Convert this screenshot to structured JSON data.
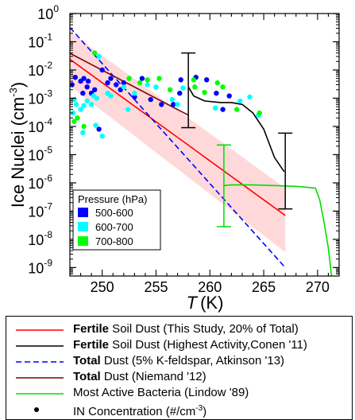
{
  "chart_data": {
    "type": "line",
    "xlabel": "T",
    "xlabel_unit": "(K)",
    "ylabel": "Ice Nuclei (cm",
    "ylabel_exp": "-3",
    "ylabel_close": ")",
    "xlim": [
      247,
      272
    ],
    "ylim_log10": [
      -9.3,
      0
    ],
    "x_ticks": [
      250,
      255,
      260,
      265,
      270
    ],
    "y_ticks": [
      {
        "exp": 0,
        "label": "10",
        "sup": "0"
      },
      {
        "exp": -1,
        "label": "10",
        "sup": "-1"
      },
      {
        "exp": -2,
        "label": "10",
        "sup": "-2"
      },
      {
        "exp": -3,
        "label": "10",
        "sup": "-3"
      },
      {
        "exp": -4,
        "label": "10",
        "sup": "-4"
      },
      {
        "exp": -5,
        "label": "10",
        "sup": "-5"
      },
      {
        "exp": -6,
        "label": "10",
        "sup": "-6"
      },
      {
        "exp": -7,
        "label": "10",
        "sup": "-7"
      },
      {
        "exp": -8,
        "label": "10",
        "sup": "-8"
      },
      {
        "exp": -9,
        "label": "10",
        "sup": "-9"
      }
    ],
    "series": [
      {
        "name": "Fertile Soil Dust (This Study, 20% of Total)",
        "color": "#ff0000",
        "style": "solid",
        "points": [
          [
            247,
            0.024
          ],
          [
            267,
            7e-08
          ]
        ],
        "band": [
          [
            247,
            0.22,
            0.0027
          ],
          [
            267,
            6.5e-07
          ],
          [
            267,
            3.5e-09
          ]
        ]
      },
      {
        "name": "Fertile Soil Dust (Highest Activity,Conen '11)",
        "color": "#000000",
        "style": "solid",
        "points": [
          [
            258,
            0.0025
          ],
          [
            258.5,
            0.0012
          ],
          [
            259.5,
            0.0008
          ],
          [
            261,
            0.0007
          ],
          [
            262,
            0.0007
          ],
          [
            263,
            0.0006
          ],
          [
            264,
            0.0003
          ],
          [
            265,
            8e-05
          ],
          [
            266,
            8e-06
          ],
          [
            266.9,
            2.5e-06
          ]
        ],
        "errorbars": [
          [
            258,
            9e-05,
            0.04
          ],
          [
            267,
            1.2e-07,
            5.8e-05
          ]
        ]
      },
      {
        "name": "Total Dust (5% K-feldspar, Atkinson '13)",
        "color": "#0000ff",
        "style": "dashed",
        "points": [
          [
            247,
            0.32
          ],
          [
            267,
            1e-09
          ]
        ]
      },
      {
        "name": "Total Dust (Niemand '12)",
        "color": "#800000",
        "style": "solid",
        "points": [
          [
            247,
            0.039
          ],
          [
            258,
            0.00025
          ]
        ]
      },
      {
        "name": "Most Active Bacteria (Lindow '89)",
        "color": "#00dd00",
        "style": "solid",
        "points": [
          [
            261.3,
            8e-07
          ],
          [
            262,
            8.5e-07
          ],
          [
            264,
            8.5e-07
          ],
          [
            266,
            8e-07
          ],
          [
            268,
            7.5e-07
          ],
          [
            269,
            7e-07
          ],
          [
            269.8,
            6.5e-07
          ],
          [
            270.2,
            2.5e-07
          ],
          [
            270.6,
            4e-08
          ],
          [
            271,
            5e-09
          ],
          [
            271.3,
            5e-10
          ]
        ],
        "errorbars": [
          [
            261.3,
            2.8e-08,
            2.2e-05
          ]
        ]
      }
    ],
    "scatter_groups": [
      {
        "name": "500-600",
        "color": "#0000ff",
        "points": [
          [
            247.2,
            0.003
          ],
          [
            247.5,
            0.0055
          ],
          [
            248,
            0.004
          ],
          [
            248.2,
            0.0015
          ],
          [
            248.3,
            0.005
          ],
          [
            248.6,
            0.0025
          ],
          [
            248.7,
            0.004
          ],
          [
            249,
            0.0015
          ],
          [
            249.3,
            0.002
          ],
          [
            249.7,
            8e-05
          ],
          [
            250,
            0.01
          ],
          [
            250.5,
            0.0035
          ],
          [
            250.8,
            0.005
          ],
          [
            251.3,
            0.003
          ],
          [
            251.7,
            0.002
          ],
          [
            252,
            0.0035
          ],
          [
            253,
            0.0011
          ],
          [
            253.7,
            0.005
          ],
          [
            254.5,
            0.0009
          ],
          [
            255.5,
            0.0006
          ],
          [
            256.6,
            0.0006
          ],
          [
            257.2,
            0.0015
          ],
          [
            257.3,
            0.0045
          ],
          [
            258.7,
            0.0055
          ],
          [
            259.7,
            0.0045
          ],
          [
            260.6,
            0.0015
          ],
          [
            261.2,
            0.0004
          ],
          [
            261.8,
            0.0012
          ]
        ]
      },
      {
        "name": "600-700",
        "color": "#00ffff",
        "points": [
          [
            247.3,
            0.0003
          ],
          [
            247.4,
            0.0009
          ],
          [
            247.6,
            0.0006
          ],
          [
            248,
            0.0004
          ],
          [
            248.3,
            0.00055
          ],
          [
            248.6,
            0.0008
          ],
          [
            249,
            0.0006
          ],
          [
            249.2,
            0.0012
          ],
          [
            249.5,
            0.001
          ],
          [
            249.7,
            0.03
          ],
          [
            250.5,
            0.0015
          ],
          [
            250.8,
            0.0012
          ],
          [
            252,
            0.0025
          ],
          [
            252.4,
            0.0004
          ],
          [
            253,
            0.0015
          ],
          [
            254.2,
            0.003
          ],
          [
            255,
            0.0025
          ],
          [
            256.5,
            0.0009
          ],
          [
            257,
            0.0006
          ],
          [
            257.5,
            0.0023
          ],
          [
            260.5,
            0.00045
          ],
          [
            262.8,
            0.0008
          ],
          [
            263.7,
            0.0011
          ],
          [
            264.5,
            0.00025
          ],
          [
            248.2,
            6e-05
          ],
          [
            249.4,
            0.00011
          ],
          [
            250,
            4.5e-05
          ]
        ]
      },
      {
        "name": "700-800",
        "color": "#00ff00",
        "points": [
          [
            247.4,
            0.00015
          ],
          [
            247.7,
            0.0002
          ],
          [
            248.3,
            0.0001
          ],
          [
            249.3,
            0.04
          ],
          [
            252.5,
            0.005
          ],
          [
            253.5,
            0.0035
          ],
          [
            254.2,
            0.0045
          ],
          [
            255.3,
            0.005
          ],
          [
            256.3,
            0.002
          ],
          [
            258.5,
            0.0045
          ],
          [
            258.6,
            0.0025
          ],
          [
            259.5,
            0.0016
          ],
          [
            260.7,
            0.0035
          ],
          [
            261.2,
            0.0025
          ],
          [
            262.5,
            0.0004
          ],
          [
            264.6,
            0.0003
          ]
        ]
      }
    ],
    "inset_legend": {
      "title": "Pressure (hPa)",
      "items": [
        {
          "label": "500-600",
          "color": "#0000ff"
        },
        {
          "label": "600-700",
          "color": "#00ffff"
        },
        {
          "label": "700-800",
          "color": "#00ff00"
        }
      ]
    }
  },
  "legend": {
    "rows": [
      {
        "kind": "line",
        "color": "#ff0000",
        "dash": false,
        "bold": "Fertile",
        "rest": " Soil Dust (This Study, 20% of Total)"
      },
      {
        "kind": "line",
        "color": "#000000",
        "dash": false,
        "bold": "Fertile",
        "rest": " Soil Dust (Highest Activity,Conen '11)"
      },
      {
        "kind": "line",
        "color": "#0000ff",
        "dash": true,
        "bold": "Total",
        "rest": " Dust (5% K-feldspar, Atkinson '13)"
      },
      {
        "kind": "line",
        "color": "#800000",
        "dash": false,
        "bold": "Total",
        "rest": " Dust (Niemand '12)"
      },
      {
        "kind": "line",
        "color": "#00dd00",
        "dash": false,
        "bold": "",
        "rest": "Most Active Bacteria  (Lindow '89)"
      },
      {
        "kind": "dot",
        "color": "#000000",
        "dash": false,
        "bold": "",
        "rest": "IN Concentration (#/cm",
        "sup": "-3",
        "close": ")"
      }
    ]
  }
}
